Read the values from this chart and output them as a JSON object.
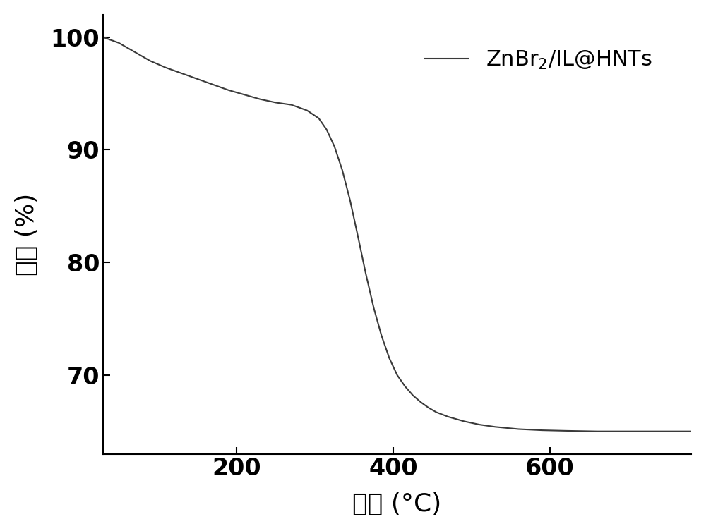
{
  "title": "",
  "xlabel": "温度 (°C)",
  "ylabel": "失重 (%)",
  "line_color": "#3a3a3a",
  "line_width": 1.5,
  "xlim": [
    30,
    780
  ],
  "ylim": [
    63,
    102
  ],
  "xticks": [
    200,
    400,
    600
  ],
  "yticks": [
    70,
    80,
    90,
    100
  ],
  "legend_label": "ZnBr$_2$/IL@HNTs",
  "background_color": "#ffffff",
  "x_data": [
    30,
    50,
    70,
    90,
    110,
    130,
    150,
    170,
    190,
    210,
    230,
    250,
    270,
    290,
    305,
    315,
    325,
    335,
    345,
    355,
    365,
    375,
    385,
    395,
    405,
    415,
    425,
    435,
    445,
    455,
    470,
    490,
    510,
    530,
    560,
    590,
    620,
    660,
    700,
    740,
    780
  ],
  "y_data": [
    100.0,
    99.5,
    98.7,
    97.9,
    97.3,
    96.8,
    96.3,
    95.8,
    95.3,
    94.9,
    94.5,
    94.2,
    94.0,
    93.5,
    92.8,
    91.8,
    90.3,
    88.2,
    85.5,
    82.3,
    79.0,
    76.0,
    73.5,
    71.5,
    70.0,
    69.0,
    68.2,
    67.6,
    67.1,
    66.7,
    66.3,
    65.9,
    65.6,
    65.4,
    65.2,
    65.1,
    65.05,
    65.0,
    65.0,
    65.0,
    65.0
  ]
}
